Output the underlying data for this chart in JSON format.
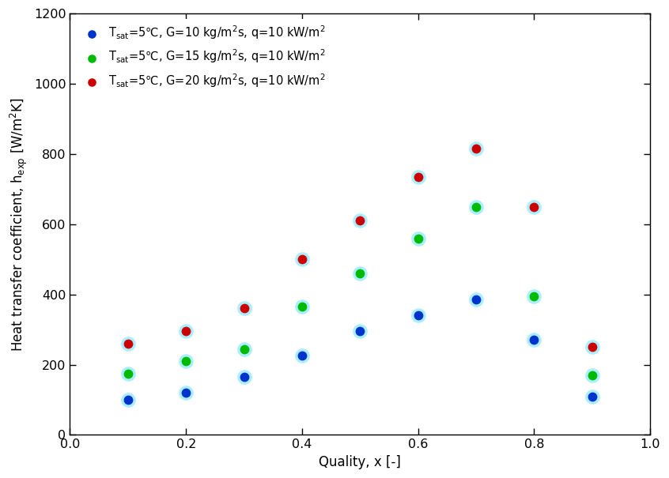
{
  "blue_x": [
    0.1,
    0.2,
    0.3,
    0.4,
    0.5,
    0.6,
    0.7,
    0.8,
    0.9
  ],
  "blue_y": [
    100,
    120,
    165,
    225,
    295,
    340,
    385,
    270,
    110
  ],
  "green_x": [
    0.1,
    0.2,
    0.3,
    0.4,
    0.5,
    0.6,
    0.7,
    0.8,
    0.9
  ],
  "green_y": [
    175,
    210,
    245,
    365,
    460,
    560,
    650,
    395,
    170
  ],
  "red_x": [
    0.1,
    0.2,
    0.3,
    0.4,
    0.5,
    0.6,
    0.7,
    0.8,
    0.9
  ],
  "red_y": [
    260,
    295,
    360,
    500,
    610,
    735,
    815,
    650,
    250
  ],
  "blue_color": "#0033cc",
  "green_color": "#00bb00",
  "red_color": "#cc0000",
  "marker_size": 72,
  "xlabel": "Quality, x [-]",
  "ylabel": "Heat transfer coefficient, $\\mathregular{h_{exp}}$ [W/m$\\mathregular{^2}$K]",
  "xlim": [
    0.0,
    1.0
  ],
  "ylim": [
    0,
    1200
  ],
  "xticks": [
    0.0,
    0.2,
    0.4,
    0.6,
    0.8,
    1.0
  ],
  "yticks": [
    0,
    200,
    400,
    600,
    800,
    1000,
    1200
  ],
  "legend_blue": "$\\mathregular{T_{sat}}$=5℃, G=10 kg/m$\\mathregular{^2}$s, q=10 kW/m$\\mathregular{^2}$",
  "legend_green": "$\\mathregular{T_{sat}}$=5℃, G=15 kg/m$\\mathregular{^2}$s, q=10 kW/m$\\mathregular{^2}$",
  "legend_red": "$\\mathregular{T_{sat}}$=5℃, G=20 kg/m$\\mathregular{^2}$s, q=10 kW/m$\\mathregular{^2}$",
  "halo_color": "#aaeeff",
  "halo_size": 180
}
